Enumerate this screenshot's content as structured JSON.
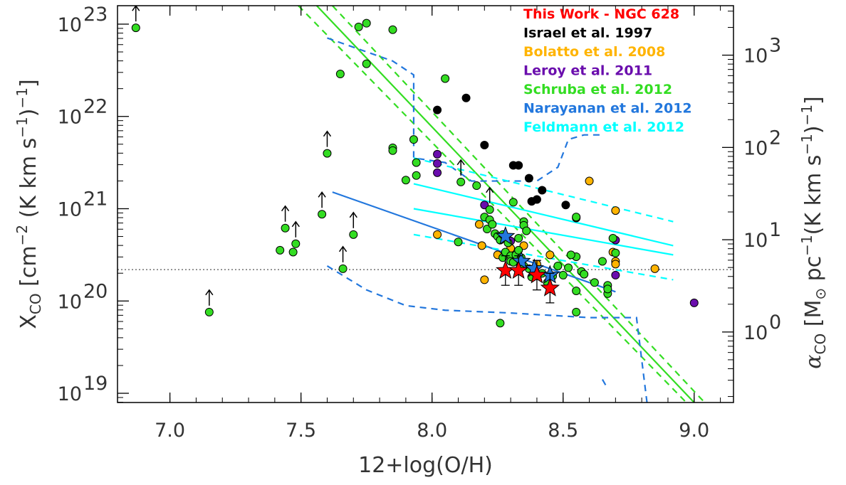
{
  "chart_data": {
    "type": "scatter",
    "title": "",
    "xlabel": "12+log(O/H)",
    "ylabel": {
      "main": "X",
      "sub": "CO",
      "unit_open": "[cm",
      "exp": "−2",
      "unit_mid": " (K km s",
      "exp2": "−1",
      "unit_close": ")",
      "exp3": "−1",
      "bracket": "]"
    },
    "y2label": {
      "main": "α",
      "sub": "CO",
      "unit_open": "[M",
      "sun": "⊙",
      "unit_mid": " pc",
      "exp": "−1",
      "unit_mid2": "(K km s",
      "exp2": "−1",
      "unit_close": ")",
      "exp3": "−1",
      "bracket": "]"
    },
    "xlim": [
      6.8,
      9.15
    ],
    "ylim_log10": [
      18.9,
      23.2
    ],
    "y_scale": "log",
    "y2_scale": "log",
    "y2_factor_log10": 19.664,
    "x_ticks": [
      7.0,
      7.5,
      8.0,
      8.5,
      9.0
    ],
    "x_tick_labels": [
      "7.0",
      "7.5",
      "8.0",
      "8.5",
      "9.0"
    ],
    "y_ticks_log10": [
      19,
      20,
      21,
      22,
      23
    ],
    "y_tick_labels": [
      "10",
      "10",
      "10",
      "10",
      "10"
    ],
    "y_tick_exps": [
      "19",
      "20",
      "21",
      "22",
      "23"
    ],
    "y2_ticks_log10": [
      0,
      1,
      2,
      3
    ],
    "y2_tick_labels": [
      "10",
      "10",
      "10",
      "10"
    ],
    "y2_tick_exps": [
      "0",
      "1",
      "2",
      "3"
    ],
    "grid": false,
    "legend_position": "top-right",
    "colors": {
      "this_work": "#ff0000",
      "israel": "#000000",
      "bolatto": "#ffb400",
      "leroy": "#6a0dad",
      "schruba": "#33dd22",
      "narayanan": "#2277dd",
      "feldmann": "#00ffff"
    },
    "legend": [
      {
        "label": "This Work - NGC 628",
        "color": "#ff0000"
      },
      {
        "label": "Israel et al. 1997",
        "color": "#000000"
      },
      {
        "label": "Bolatto et al. 2008",
        "color": "#ffb400"
      },
      {
        "label": "Leroy et al. 2011",
        "color": "#6a0dad"
      },
      {
        "label": "Schruba et al. 2012",
        "color": "#33dd22"
      },
      {
        "label": "Narayanan et al. 2012",
        "color": "#2277dd"
      },
      {
        "label": "Feldmann et al. 2012",
        "color": "#00ffff"
      }
    ],
    "reference_line_log10": 20.34,
    "series": [
      {
        "name": "Israel et al. 1997",
        "marker": "circle",
        "color": "#000000",
        "points": [
          [
            8.02,
            22.07
          ],
          [
            8.13,
            22.2
          ],
          [
            8.2,
            21.69
          ],
          [
            8.31,
            21.47
          ],
          [
            8.33,
            21.47
          ],
          [
            8.37,
            21.33
          ],
          [
            8.38,
            21.08
          ],
          [
            8.4,
            21.1
          ],
          [
            8.42,
            21.2
          ],
          [
            8.51,
            21.04
          ],
          [
            8.55,
            20.9
          ]
        ]
      },
      {
        "name": "Bolatto et al. 2008",
        "marker": "circle",
        "color": "#ffb400",
        "points": [
          [
            8.02,
            20.72
          ],
          [
            8.18,
            20.83
          ],
          [
            8.19,
            20.6
          ],
          [
            8.2,
            20.23
          ],
          [
            8.25,
            20.5
          ],
          [
            8.3,
            20.57
          ],
          [
            8.35,
            20.6
          ],
          [
            8.4,
            20.4
          ],
          [
            8.45,
            20.5
          ],
          [
            8.6,
            21.3
          ],
          [
            8.7,
            20.98
          ],
          [
            8.69,
            20.53
          ],
          [
            8.7,
            20.43
          ],
          [
            8.7,
            20.4
          ],
          [
            8.85,
            20.35
          ]
        ]
      },
      {
        "name": "Leroy et al. 2011",
        "marker": "circle",
        "color": "#6a0dad",
        "points": [
          [
            8.02,
            21.59
          ],
          [
            8.02,
            21.49
          ],
          [
            8.02,
            21.39
          ],
          [
            8.2,
            21.04
          ],
          [
            8.3,
            20.65
          ],
          [
            8.7,
            20.66
          ],
          [
            8.7,
            20.28
          ],
          [
            9.0,
            19.98
          ]
        ]
      },
      {
        "name": "Schruba et al. 2012",
        "marker": "circle",
        "color": "#33dd22",
        "points": [
          [
            6.87,
            22.96
          ],
          [
            7.15,
            19.88
          ],
          [
            7.42,
            20.55
          ],
          [
            7.44,
            20.79
          ],
          [
            7.47,
            20.53
          ],
          [
            7.48,
            20.62
          ],
          [
            7.58,
            20.94
          ],
          [
            7.6,
            21.6
          ],
          [
            7.66,
            20.35
          ],
          [
            7.7,
            20.72
          ],
          [
            7.65,
            22.46
          ],
          [
            7.72,
            22.97
          ],
          [
            7.75,
            22.57
          ],
          [
            7.75,
            23.01
          ],
          [
            7.85,
            22.94
          ],
          [
            7.85,
            21.66
          ],
          [
            7.85,
            21.63
          ],
          [
            7.9,
            21.31
          ],
          [
            7.93,
            21.75
          ],
          [
            7.94,
            21.5
          ],
          [
            7.94,
            21.36
          ],
          [
            8.05,
            22.41
          ],
          [
            8.1,
            20.64
          ],
          [
            8.11,
            21.29
          ],
          [
            8.17,
            21.25
          ],
          [
            8.2,
            20.91
          ],
          [
            8.21,
            20.78
          ],
          [
            8.22,
            20.88
          ],
          [
            8.23,
            20.83
          ],
          [
            8.24,
            20.73
          ],
          [
            8.25,
            20.7
          ],
          [
            8.26,
            20.66
          ],
          [
            8.27,
            20.72
          ],
          [
            8.27,
            20.47
          ],
          [
            8.28,
            20.53
          ],
          [
            8.29,
            20.63
          ],
          [
            8.3,
            20.49
          ],
          [
            8.3,
            20.43
          ],
          [
            8.31,
            20.42
          ],
          [
            8.32,
            20.5
          ],
          [
            8.33,
            20.55
          ],
          [
            8.34,
            20.47
          ],
          [
            8.35,
            20.38
          ],
          [
            8.35,
            20.86
          ],
          [
            8.35,
            20.82
          ],
          [
            8.37,
            20.35
          ],
          [
            8.38,
            20.26
          ],
          [
            8.39,
            20.32
          ],
          [
            8.42,
            20.3
          ],
          [
            8.44,
            20.2
          ],
          [
            8.46,
            20.27
          ],
          [
            8.48,
            20.38
          ],
          [
            8.5,
            20.28
          ],
          [
            8.52,
            20.36
          ],
          [
            8.55,
            20.48
          ],
          [
            8.57,
            20.32
          ],
          [
            8.58,
            20.29
          ],
          [
            8.62,
            20.2
          ],
          [
            8.55,
            20.11
          ],
          [
            8.65,
            20.43
          ],
          [
            8.67,
            20.17
          ],
          [
            8.67,
            20.08
          ],
          [
            8.67,
            20.13
          ],
          [
            8.7,
            20.52
          ],
          [
            8.69,
            20.68
          ],
          [
            8.53,
            20.5
          ],
          [
            8.55,
            20.91
          ],
          [
            8.26,
            19.76
          ],
          [
            8.55,
            19.88
          ],
          [
            8.36,
            20.76
          ],
          [
            8.31,
            21.07
          ],
          [
            8.33,
            20.68
          ],
          [
            8.22,
            20.99
          ]
        ]
      },
      {
        "name": "Narayanan et al. 2012",
        "marker": "star",
        "color": "#2277dd",
        "points": [
          [
            8.28,
            20.7
          ],
          [
            8.34,
            20.43
          ],
          [
            8.39,
            20.35
          ],
          [
            8.45,
            20.28
          ]
        ]
      },
      {
        "name": "This Work - NGC 628",
        "marker": "star",
        "color": "#ff0000",
        "points": [
          [
            8.28,
            20.33,
            0.16
          ],
          [
            8.33,
            20.33,
            0.16
          ],
          [
            8.4,
            20.28,
            0.16
          ],
          [
            8.45,
            20.14,
            0.16
          ]
        ]
      }
    ],
    "upper_limit_arrows": [
      [
        6.87,
        22.96
      ],
      [
        7.15,
        19.88
      ],
      [
        7.44,
        20.79
      ],
      [
        7.48,
        20.62
      ],
      [
        7.58,
        20.94
      ],
      [
        7.6,
        21.6
      ],
      [
        7.66,
        20.35
      ],
      [
        7.7,
        20.72
      ],
      [
        8.11,
        21.29
      ],
      [
        8.22,
        20.99
      ]
    ],
    "lines": [
      {
        "name": "Schruba fit",
        "color": "#33dd22",
        "style": "solid",
        "points": [
          [
            7.56,
            23.2
          ],
          [
            9.0,
            18.9
          ]
        ]
      },
      {
        "name": "Schruba fit upper",
        "color": "#33dd22",
        "style": "dashed",
        "points": [
          [
            7.62,
            23.2
          ],
          [
            9.04,
            18.9
          ]
        ]
      },
      {
        "name": "Schruba fit lower",
        "color": "#33dd22",
        "style": "dashed",
        "points": [
          [
            7.49,
            23.2
          ],
          [
            8.97,
            18.9
          ]
        ]
      },
      {
        "name": "Narayanan model",
        "color": "#2277dd",
        "style": "solid",
        "points": [
          [
            7.62,
            21.18
          ],
          [
            8.7,
            20.1
          ]
        ]
      },
      {
        "name": "Narayanan envelope",
        "color": "#2277dd",
        "style": "dashed",
        "points": [
          [
            7.6,
            22.85
          ],
          [
            7.85,
            22.6
          ],
          [
            7.93,
            22.45
          ],
          [
            7.93,
            22.2
          ],
          [
            7.93,
            21.55
          ],
          [
            8.05,
            21.5
          ],
          [
            8.15,
            21.3
          ],
          [
            8.4,
            21.3
          ],
          [
            8.48,
            21.45
          ],
          [
            8.52,
            21.75
          ],
          [
            8.58,
            21.8
          ],
          [
            8.65,
            21.8
          ]
        ]
      },
      {
        "name": "Narayanan lower envelope",
        "color": "#2277dd",
        "style": "dashed",
        "points": [
          [
            7.6,
            20.38
          ],
          [
            7.75,
            20.12
          ],
          [
            7.9,
            19.95
          ],
          [
            8.05,
            19.9
          ],
          [
            8.3,
            19.87
          ],
          [
            8.6,
            19.82
          ],
          [
            8.78,
            19.82
          ],
          [
            8.82,
            18.9
          ]
        ]
      },
      {
        "name": "Narayanan lower tail",
        "color": "#2277dd",
        "style": "dashed",
        "points": [
          [
            8.65,
            19.15
          ],
          [
            8.67,
            19.05
          ]
        ]
      },
      {
        "name": "Feldmann model",
        "color": "#00ffff",
        "style": "solid",
        "points": [
          [
            7.93,
            21.27
          ],
          [
            8.92,
            20.6
          ]
        ]
      },
      {
        "name": "Feldmann model 2",
        "color": "#00ffff",
        "style": "solid",
        "points": [
          [
            7.93,
            21.0
          ],
          [
            8.92,
            20.5
          ]
        ]
      },
      {
        "name": "Feldmann upper",
        "color": "#00ffff",
        "style": "dashed",
        "points": [
          [
            7.93,
            21.55
          ],
          [
            8.92,
            20.86
          ]
        ]
      },
      {
        "name": "Feldmann lower",
        "color": "#00ffff",
        "style": "dashed",
        "points": [
          [
            7.93,
            20.72
          ],
          [
            8.92,
            20.23
          ]
        ]
      }
    ]
  }
}
